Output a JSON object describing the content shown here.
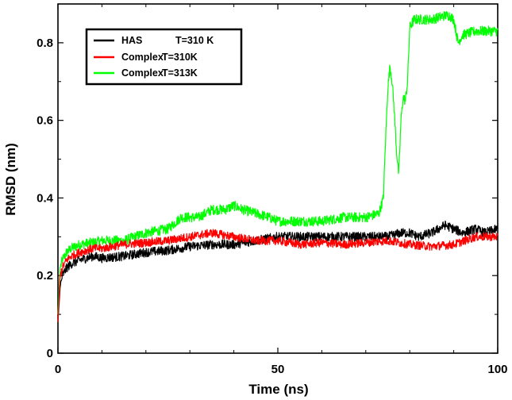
{
  "chart_data": {
    "type": "line",
    "title": "",
    "xlabel": "Time (ns)",
    "ylabel": "RMSD (nm)",
    "xlim": [
      0,
      100
    ],
    "ylim": [
      0,
      0.9
    ],
    "x_ticks": [
      0,
      50,
      100
    ],
    "y_ticks": [
      0,
      0.2,
      0.4,
      0.6,
      0.8
    ],
    "x_tick_labels": [
      "0",
      "50",
      "100"
    ],
    "y_tick_labels": [
      "0",
      "0.2",
      "0.4",
      "0.6",
      "0.8"
    ],
    "legend_position": "top-left",
    "grid": false,
    "series": [
      {
        "name": "HAS",
        "legend_extra": "T=310 K",
        "color": "#000000",
        "x": [
          0,
          0.5,
          1,
          2,
          3,
          5,
          8,
          10,
          15,
          20,
          25,
          30,
          35,
          40,
          45,
          50,
          55,
          60,
          65,
          70,
          75,
          78,
          80,
          82,
          85,
          88,
          90,
          92,
          95,
          97,
          100
        ],
        "y": [
          0.08,
          0.17,
          0.2,
          0.22,
          0.23,
          0.24,
          0.25,
          0.245,
          0.25,
          0.26,
          0.265,
          0.275,
          0.28,
          0.28,
          0.29,
          0.3,
          0.3,
          0.3,
          0.3,
          0.3,
          0.3,
          0.31,
          0.31,
          0.3,
          0.31,
          0.33,
          0.32,
          0.31,
          0.32,
          0.31,
          0.32
        ]
      },
      {
        "name": "Complex",
        "legend_extra": "T=310K",
        "color": "#ff0000",
        "x": [
          0,
          0.5,
          1,
          2,
          3,
          5,
          8,
          10,
          15,
          20,
          25,
          30,
          35,
          40,
          45,
          50,
          55,
          60,
          65,
          70,
          75,
          80,
          85,
          90,
          95,
          100
        ],
        "y": [
          0.08,
          0.2,
          0.22,
          0.24,
          0.25,
          0.26,
          0.27,
          0.27,
          0.28,
          0.285,
          0.29,
          0.3,
          0.31,
          0.3,
          0.29,
          0.29,
          0.28,
          0.285,
          0.28,
          0.285,
          0.29,
          0.28,
          0.275,
          0.28,
          0.3,
          0.3
        ]
      },
      {
        "name": "Complex",
        "legend_extra": "T=313K",
        "color": "#00ff00",
        "x": [
          0,
          0.5,
          1,
          2,
          3,
          5,
          8,
          10,
          15,
          20,
          25,
          28,
          32,
          35,
          38,
          40,
          42,
          45,
          48,
          50,
          55,
          60,
          65,
          70,
          73,
          74,
          74.5,
          75,
          75.5,
          76,
          76.5,
          77,
          77.5,
          78,
          78.5,
          79,
          79.5,
          80,
          81,
          82,
          85,
          88,
          89,
          90,
          91,
          92,
          95,
          98,
          100
        ],
        "y": [
          0.1,
          0.22,
          0.24,
          0.26,
          0.27,
          0.28,
          0.285,
          0.29,
          0.29,
          0.31,
          0.32,
          0.35,
          0.35,
          0.37,
          0.37,
          0.38,
          0.37,
          0.36,
          0.35,
          0.34,
          0.34,
          0.34,
          0.35,
          0.35,
          0.36,
          0.4,
          0.55,
          0.68,
          0.74,
          0.7,
          0.62,
          0.52,
          0.46,
          0.6,
          0.66,
          0.65,
          0.7,
          0.84,
          0.86,
          0.86,
          0.86,
          0.87,
          0.87,
          0.86,
          0.8,
          0.82,
          0.83,
          0.83,
          0.83
        ]
      }
    ]
  }
}
